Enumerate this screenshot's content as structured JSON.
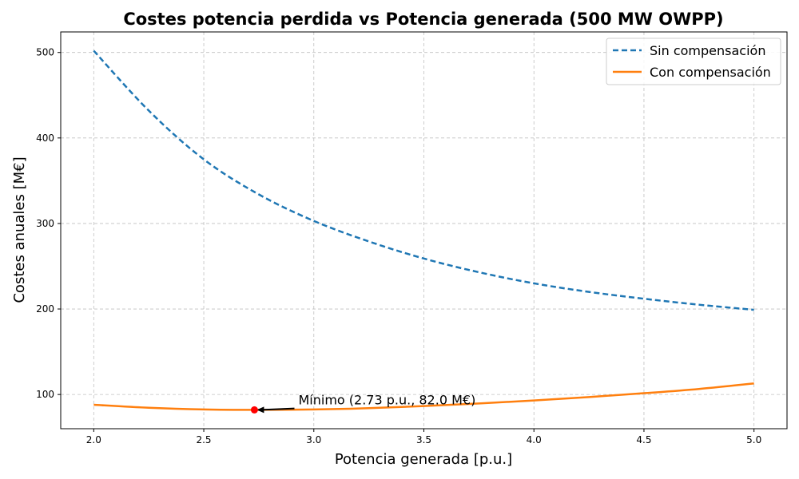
{
  "chart_data": {
    "type": "line",
    "title": "Costes potencia perdida vs Potencia generada (500 MW OWPP)",
    "xlabel": "Potencia generada [p.u.]",
    "ylabel": "Costes anuales [M€]",
    "xlim": [
      1.85,
      5.15
    ],
    "ylim": [
      60,
      524
    ],
    "xticks": [
      2.0,
      2.5,
      3.0,
      3.5,
      4.0,
      4.5,
      5.0
    ],
    "xtick_labels": [
      "2.0",
      "2.5",
      "3.0",
      "3.5",
      "4.0",
      "4.5",
      "5.0"
    ],
    "yticks": [
      100,
      200,
      300,
      400,
      500
    ],
    "ytick_labels": [
      "100",
      "200",
      "300",
      "400",
      "500"
    ],
    "grid": true,
    "legend_position": "top-right",
    "series": [
      {
        "name": "Sin compensación",
        "color": "#1f77b4",
        "style": "dashed",
        "x": [
          2.0,
          2.25,
          2.5,
          2.75,
          3.0,
          3.25,
          3.5,
          3.75,
          4.0,
          4.25,
          4.5,
          4.75,
          5.0
        ],
        "y": [
          502,
          432,
          375,
          334,
          303,
          279,
          259,
          243,
          230,
          220,
          212,
          205,
          199
        ]
      },
      {
        "name": "Con compensación",
        "color": "#ff7f0e",
        "style": "solid",
        "x": [
          2.0,
          2.25,
          2.5,
          2.73,
          3.0,
          3.25,
          3.5,
          3.75,
          4.0,
          4.25,
          4.5,
          4.75,
          5.0
        ],
        "y": [
          88,
          84.5,
          82.5,
          82.0,
          82.5,
          84,
          86.5,
          89.5,
          93,
          97,
          101.5,
          106.5,
          113
        ]
      }
    ],
    "annotation": {
      "text": "Mínimo (2.73 p.u., 82.0 M€)",
      "point_x": 2.73,
      "point_y": 82.0,
      "marker_color": "#ff0000",
      "text_x": 2.93,
      "text_y": 93
    }
  }
}
